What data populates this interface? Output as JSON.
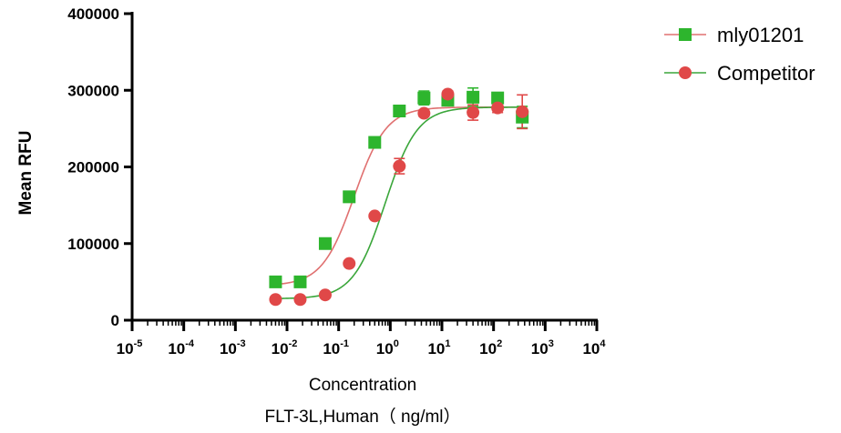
{
  "chart_data": {
    "type": "scatter",
    "ylabel": "Mean RFU",
    "xlabel_lines": [
      "Concentration",
      "FLT-3L,Human（ ng/ml）"
    ],
    "x_scale": "log",
    "xlim": [
      1e-05,
      10000
    ],
    "ylim": [
      0,
      400000
    ],
    "y_ticks": [
      0,
      100000,
      200000,
      300000,
      400000
    ],
    "y_tick_labels": [
      "0",
      "100000",
      "200000",
      "300000",
      "400000"
    ],
    "x_ticks": [
      {
        "value": 1e-05,
        "base": "10",
        "exp": "-5"
      },
      {
        "value": 0.0001,
        "base": "10",
        "exp": "-4"
      },
      {
        "value": 0.001,
        "base": "10",
        "exp": "-3"
      },
      {
        "value": 0.01,
        "base": "10",
        "exp": "-2"
      },
      {
        "value": 0.1,
        "base": "10",
        "exp": "-1"
      },
      {
        "value": 1,
        "base": "10",
        "exp": "0"
      },
      {
        "value": 10,
        "base": "10",
        "exp": "1"
      },
      {
        "value": 100,
        "base": "10",
        "exp": "2"
      },
      {
        "value": 1000,
        "base": "10",
        "exp": "3"
      },
      {
        "value": 10000,
        "base": "10",
        "exp": "4"
      }
    ],
    "legend_position": "top-right",
    "series": [
      {
        "name": "mly01201",
        "marker": "square",
        "color": "#2db52d",
        "curve_color": "#e07070",
        "fit": {
          "bottom": 45000,
          "top": 278000,
          "ec50": 0.2,
          "hill": 1.4
        },
        "points": [
          {
            "x": 0.006,
            "y": 50000,
            "err": 3000
          },
          {
            "x": 0.018,
            "y": 50000,
            "err": 3000
          },
          {
            "x": 0.055,
            "y": 100000,
            "err": 4000
          },
          {
            "x": 0.16,
            "y": 161000,
            "err": 4000
          },
          {
            "x": 0.5,
            "y": 232000,
            "err": 4000
          },
          {
            "x": 1.5,
            "y": 273000,
            "err": 5000
          },
          {
            "x": 4.5,
            "y": 290000,
            "err": 9000
          },
          {
            "x": 13,
            "y": 287000,
            "err": 6000
          },
          {
            "x": 40,
            "y": 291000,
            "err": 12000
          },
          {
            "x": 120,
            "y": 290000,
            "err": 5000
          },
          {
            "x": 360,
            "y": 265000,
            "err": 14000
          }
        ]
      },
      {
        "name": "Competitor",
        "marker": "circle",
        "color": "#e04848",
        "curve_color": "#3aa63a",
        "fit": {
          "bottom": 28000,
          "top": 278000,
          "ec50": 0.8,
          "hill": 1.4
        },
        "points": [
          {
            "x": 0.006,
            "y": 27000,
            "err": 2000
          },
          {
            "x": 0.018,
            "y": 27000,
            "err": 2000
          },
          {
            "x": 0.055,
            "y": 33000,
            "err": 2000
          },
          {
            "x": 0.16,
            "y": 74000,
            "err": 3000
          },
          {
            "x": 0.5,
            "y": 136000,
            "err": 3000
          },
          {
            "x": 1.5,
            "y": 201000,
            "err": 10000
          },
          {
            "x": 4.5,
            "y": 270000,
            "err": 4000
          },
          {
            "x": 13,
            "y": 295000,
            "err": 4000
          },
          {
            "x": 40,
            "y": 271000,
            "err": 10000
          },
          {
            "x": 120,
            "y": 277000,
            "err": 6000
          },
          {
            "x": 360,
            "y": 272000,
            "err": 22000
          }
        ]
      }
    ]
  }
}
